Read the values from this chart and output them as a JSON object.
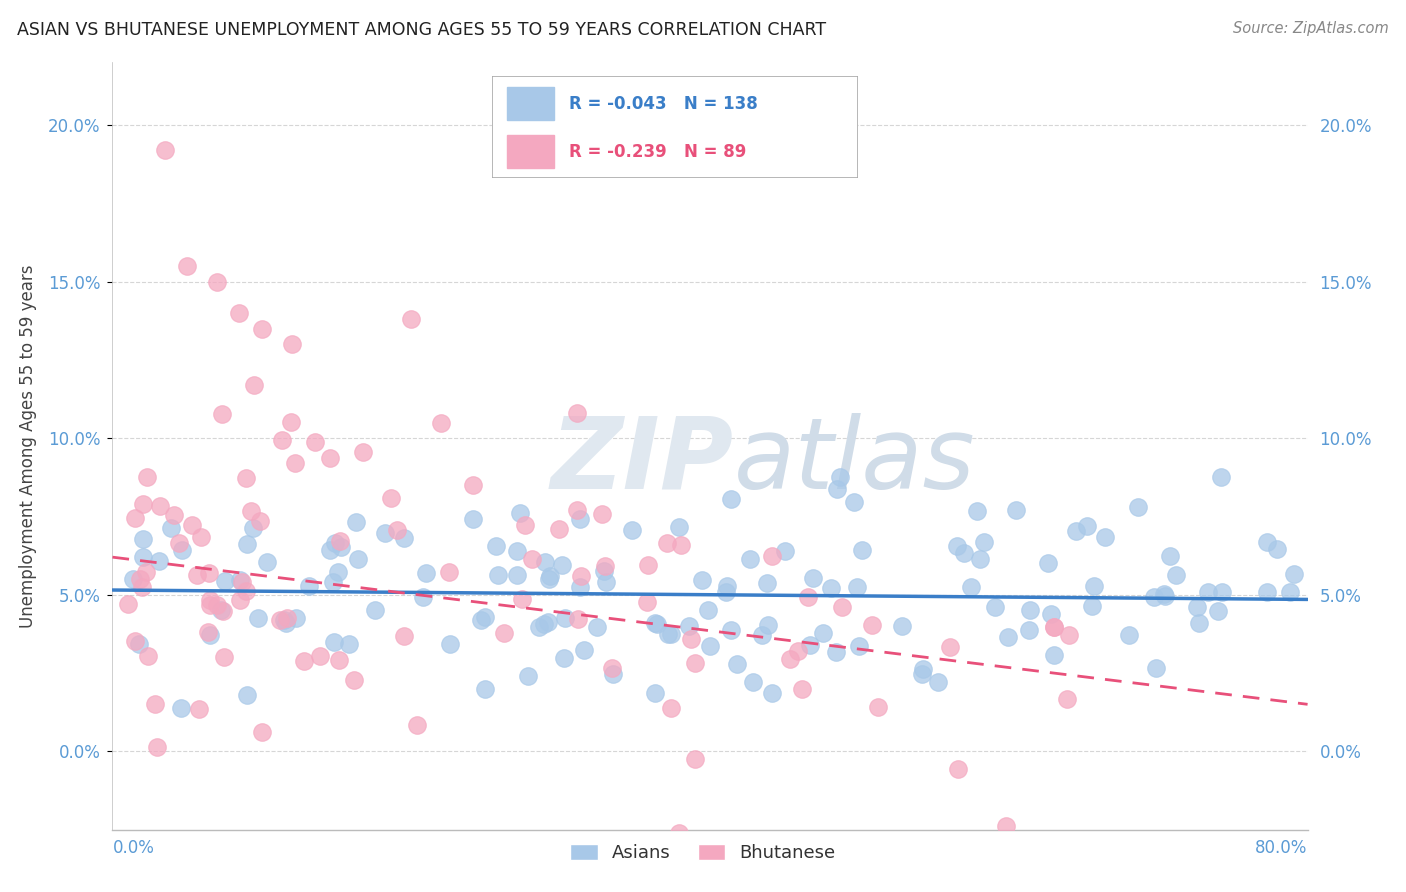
{
  "title": "ASIAN VS BHUTANESE UNEMPLOYMENT AMONG AGES 55 TO 59 YEARS CORRELATION CHART",
  "source": "Source: ZipAtlas.com",
  "ylabel": "Unemployment Among Ages 55 to 59 years",
  "xlim": [
    0.0,
    80.0
  ],
  "ylim": [
    -2.5,
    22.0
  ],
  "yticks": [
    0.0,
    5.0,
    10.0,
    15.0,
    20.0
  ],
  "ytick_labels": [
    "0.0%",
    "5.0%",
    "10.0%",
    "15.0%",
    "20.0%"
  ],
  "legend_r1": "-0.043",
  "legend_n1": "138",
  "legend_r2": "-0.239",
  "legend_n2": "89",
  "color_asian": "#A8C8E8",
  "color_bhutanese": "#F4A8C0",
  "color_asian_line": "#3A7EC8",
  "color_bhutanese_line": "#E8507A",
  "watermark_color": "#E0E8F0",
  "asian_trend_y0": 5.15,
  "asian_trend_y1": 4.85,
  "bhu_trend_y0": 6.2,
  "bhu_trend_y1": 1.5
}
